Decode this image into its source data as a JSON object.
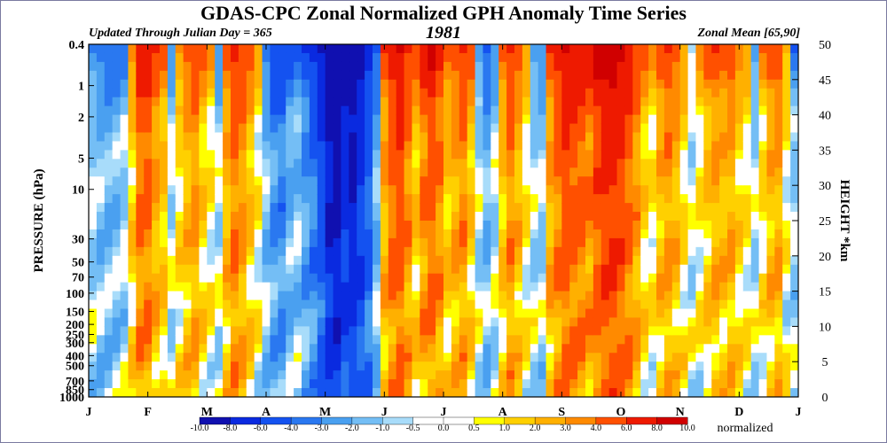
{
  "header": {
    "title": "GDAS-CPC Zonal Normalized GPH Anomaly Time Series",
    "updated": "Updated Through Julian Day = 365",
    "year": "1981",
    "region": "Zonal Mean [65,90]"
  },
  "chart_data": {
    "type": "heatmap",
    "title": "GDAS-CPC Zonal Normalized GPH Anomaly Time Series",
    "ylabel_left": "PRESSURE (hPa)",
    "ylabel_right": "HEIGHT *km",
    "x_ticks": [
      "J",
      "F",
      "M",
      "A",
      "M",
      "J",
      "J",
      "A",
      "S",
      "O",
      "N",
      "D",
      "J"
    ],
    "y_left_ticks": [
      "0.4",
      "1",
      "2",
      "5",
      "10",
      "30",
      "50",
      "70",
      "100",
      "150",
      "200",
      "250",
      "300",
      "400",
      "500",
      "700",
      "850",
      "1000"
    ],
    "y_left_values": [
      0.4,
      1,
      2,
      5,
      10,
      30,
      50,
      70,
      100,
      150,
      200,
      250,
      300,
      400,
      500,
      700,
      850,
      1000
    ],
    "y_right_ticks": [
      "50",
      "45",
      "40",
      "35",
      "30",
      "25",
      "20",
      "15",
      "10",
      "5",
      "0"
    ],
    "y_right_values": [
      50,
      45,
      40,
      35,
      30,
      25,
      20,
      15,
      10,
      5,
      0
    ],
    "colorbar_label": "normalized",
    "colorbar_levels": [
      "-10.0",
      "-8.0",
      "-6.0",
      "-4.0",
      "-3.0",
      "-2.0",
      "-1.0",
      "-0.5",
      "0.0",
      "0.5",
      "1.0",
      "2.0",
      "3.0",
      "4.0",
      "6.0",
      "8.0",
      "10.0"
    ],
    "colorbar_colors": [
      "#1010b0",
      "#0a2ae0",
      "#1452f0",
      "#2a78f0",
      "#4aa0f0",
      "#74bef5",
      "#a8dcfa",
      "#ffffff",
      "#ffffff",
      "#ffff00",
      "#ffd000",
      "#ffb000",
      "#ff8a00",
      "#ff5000",
      "#ee1a00",
      "#d00000"
    ],
    "column_anomalies": [
      -0.8,
      -1.5,
      -1.8,
      -1.5,
      -1.0,
      1.5,
      4.5,
      5,
      3,
      2,
      -0.5,
      1.2,
      2.5,
      3.5,
      1.5,
      0.5,
      -0.5,
      2.5,
      4.5,
      3.5,
      2,
      0.3,
      -1.5,
      -3,
      -3.5,
      -2,
      -1.5,
      -3,
      -4,
      -6,
      -9,
      -10,
      -8,
      -9,
      -7,
      -5,
      -2,
      3,
      5,
      6,
      4,
      2,
      4,
      5.5,
      4,
      2,
      3,
      4,
      2,
      -0.5,
      -2,
      -0.5,
      2,
      4,
      2.5,
      0.5,
      -0.5,
      -1,
      3,
      4.5,
      6,
      5.5,
      5,
      4,
      6,
      7,
      7.5,
      6.5,
      5,
      3.5,
      1.5,
      0.8,
      2.5,
      3.5,
      2.5,
      1,
      -0.3,
      0.5,
      2,
      3,
      2.5,
      3,
      1.5,
      0.5,
      -0.5,
      1,
      2.5,
      3,
      0.3,
      -1
    ]
  }
}
